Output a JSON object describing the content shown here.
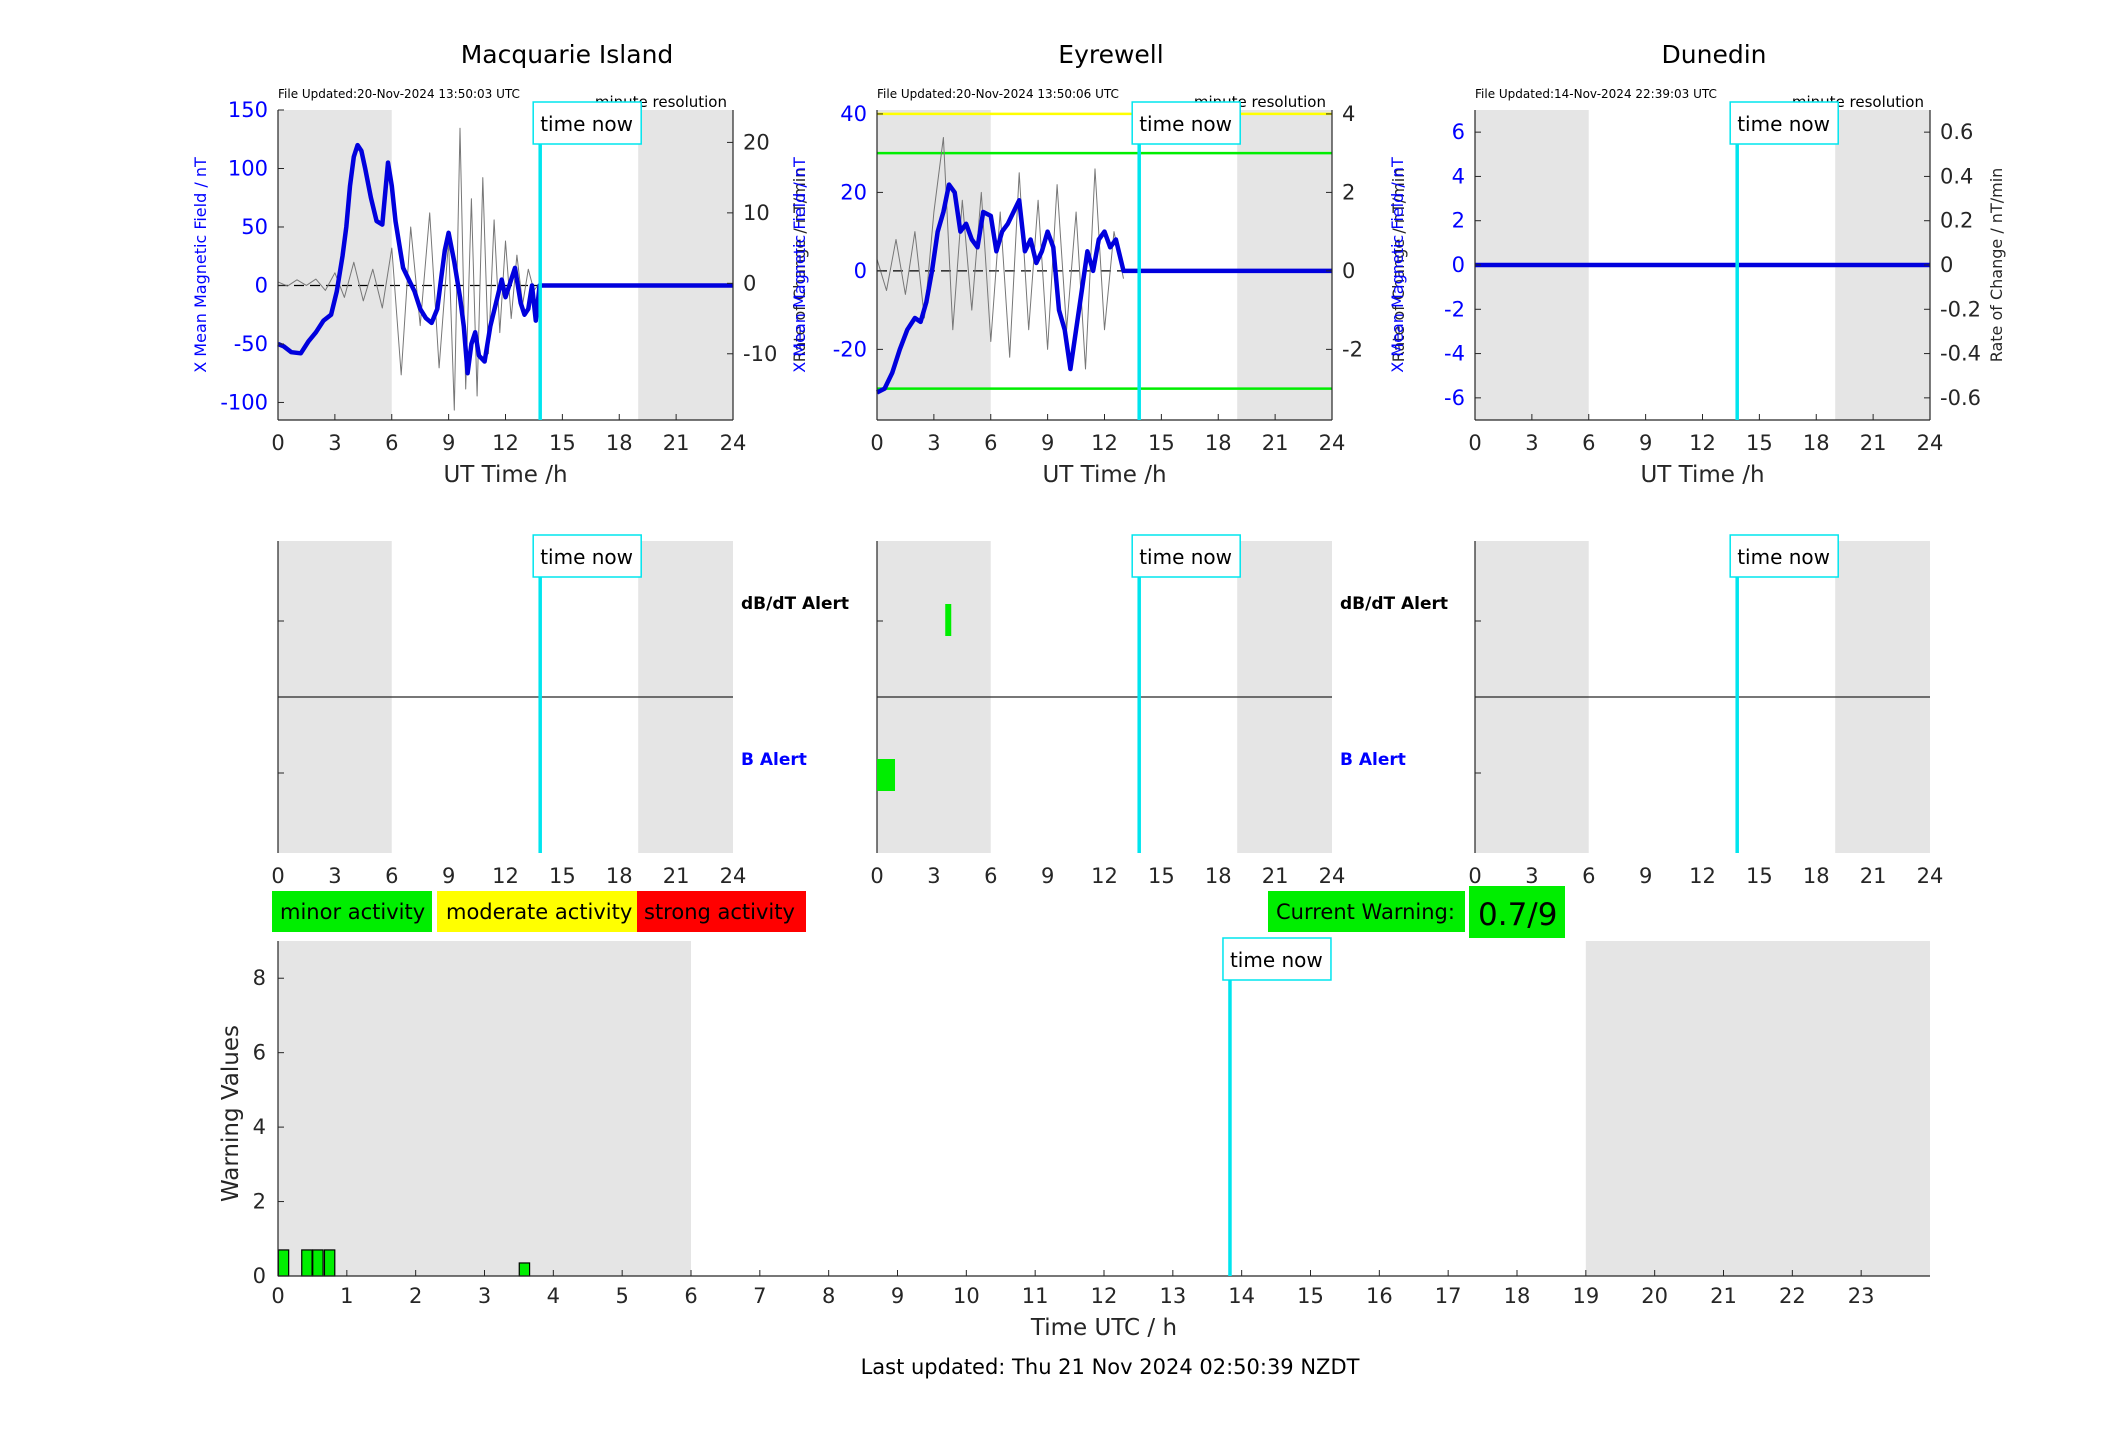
{
  "figure": {
    "footer": "Last updated: Thu 21 Nov 2024 02:50:39 NZDT",
    "time_now_label": "time now",
    "dbdt_alert_label": "dB/dT Alert",
    "b_alert_label": "B Alert",
    "colors": {
      "field_line": "#0000dd",
      "rate_line": "#777777",
      "time_now_line": "#00e5ee",
      "shade": "#e5e5e5",
      "minor": "#00ee00",
      "moderate": "#ffff00",
      "strong": "#ff0000",
      "b_axis": "#0000ff"
    },
    "legend": {
      "minor": "minor activity",
      "moderate": "moderate activity",
      "strong": "strong activity"
    },
    "current_warning": {
      "label": "Current Warning:",
      "value": "0.7/9"
    }
  },
  "chart_data": [
    {
      "type": "line",
      "title": "Macquarie Island",
      "file_updated": "File Updated:20-Nov-2024 13:50:03 UTC",
      "resolution": "minute resolution",
      "xlabel": "UT Time /h",
      "ylabel": "X Mean Magnetic Field / nT",
      "y2label": "Rate of Change / nT/min",
      "xlim": [
        0,
        24
      ],
      "xticks": [
        0,
        3,
        6,
        9,
        12,
        15,
        18,
        21,
        24
      ],
      "ylim": [
        -115,
        150
      ],
      "yticks": [
        -100,
        -50,
        0,
        50,
        100,
        150
      ],
      "y2lim": [
        -19.4,
        24.6
      ],
      "y2ticks": [
        -10,
        0,
        10,
        20
      ],
      "shaded_hours": [
        [
          0,
          6
        ],
        [
          19,
          24
        ]
      ],
      "time_now": 13.83,
      "threshold_lines": [],
      "field_series": {
        "x": [
          0,
          0.3,
          0.7,
          1.2,
          1.6,
          2.0,
          2.4,
          2.8,
          3.1,
          3.4,
          3.6,
          3.8,
          4.0,
          4.2,
          4.4,
          4.6,
          4.9,
          5.2,
          5.5,
          5.8,
          6.0,
          6.2,
          6.4,
          6.6,
          6.9,
          7.2,
          7.5,
          7.8,
          8.1,
          8.4,
          8.6,
          8.8,
          9.0,
          9.3,
          9.6,
          9.8,
          10.0,
          10.2,
          10.4,
          10.6,
          10.9,
          11.2,
          11.5,
          11.8,
          12.0,
          12.3,
          12.5,
          12.8,
          13.0,
          13.2,
          13.4,
          13.6,
          13.8,
          14.0,
          24
        ],
        "y": [
          -50,
          -52,
          -57,
          -58,
          -48,
          -40,
          -30,
          -25,
          -5,
          25,
          50,
          85,
          110,
          120,
          115,
          100,
          75,
          55,
          52,
          105,
          85,
          55,
          35,
          15,
          5,
          -5,
          -20,
          -28,
          -32,
          -20,
          5,
          30,
          45,
          20,
          -10,
          -35,
          -75,
          -50,
          -40,
          -60,
          -65,
          -35,
          -15,
          5,
          -10,
          5,
          15,
          -15,
          -25,
          -20,
          0,
          -30,
          0,
          0,
          0
        ]
      },
      "rate_series": {
        "x": [
          0,
          0.5,
          1,
          1.5,
          2,
          2.5,
          3,
          3.5,
          4,
          4.5,
          5,
          5.5,
          6,
          6.5,
          7,
          7.5,
          8,
          8.5,
          9,
          9.3,
          9.6,
          9.9,
          10.2,
          10.5,
          10.8,
          11.1,
          11.4,
          11.7,
          12,
          12.3,
          12.6,
          12.9,
          13.2,
          13.5,
          13.8
        ],
        "y": [
          0.2,
          -0.4,
          0.5,
          -0.3,
          0.6,
          -1.0,
          1.5,
          -2.0,
          3.0,
          -2.5,
          2.0,
          -3.5,
          5.0,
          -13.0,
          8.0,
          -6.0,
          10.0,
          -12.0,
          6.0,
          -18.0,
          22.0,
          -15.0,
          12.0,
          -16.0,
          15.0,
          -10.0,
          9.0,
          -7.0,
          6.0,
          -5.0,
          4.0,
          -3.0,
          2.0,
          -1.0,
          0.0
        ]
      }
    },
    {
      "type": "line",
      "title": "Eyrewell",
      "file_updated": "File Updated:20-Nov-2024 13:50:06 UTC",
      "resolution": "minute resolution",
      "xlabel": "UT Time /h",
      "ylabel": "X Mean Magnetic Field / nT",
      "y2label": "Rate of Change / nT/min",
      "xlim": [
        0,
        24
      ],
      "xticks": [
        0,
        3,
        6,
        9,
        12,
        15,
        18,
        21,
        24
      ],
      "ylim": [
        -38,
        41
      ],
      "yticks": [
        -20,
        0,
        20,
        40
      ],
      "y2lim": [
        -3.8,
        4.1
      ],
      "y2ticks": [
        -2,
        0,
        2,
        4
      ],
      "shaded_hours": [
        [
          0,
          6
        ],
        [
          19,
          24
        ]
      ],
      "time_now": 13.83,
      "threshold_lines": [
        {
          "value": 40,
          "color": "#ffff00"
        },
        {
          "value": 30,
          "color": "#00ee00"
        },
        {
          "value": -30,
          "color": "#00ee00"
        }
      ],
      "field_series": {
        "x": [
          0,
          0.4,
          0.8,
          1.2,
          1.6,
          2.0,
          2.3,
          2.6,
          2.9,
          3.2,
          3.5,
          3.8,
          4.1,
          4.4,
          4.7,
          5.0,
          5.3,
          5.6,
          6.0,
          6.3,
          6.6,
          6.9,
          7.2,
          7.5,
          7.8,
          8.1,
          8.4,
          8.7,
          9.0,
          9.3,
          9.6,
          9.9,
          10.2,
          10.5,
          10.8,
          11.1,
          11.4,
          11.7,
          12.0,
          12.3,
          12.6,
          13.0,
          13.5,
          24
        ],
        "y": [
          -31,
          -30,
          -26,
          -20,
          -15,
          -12,
          -13,
          -8,
          0,
          10,
          15,
          22,
          20,
          10,
          12,
          8,
          6,
          15,
          14,
          5,
          10,
          12,
          15,
          18,
          5,
          8,
          2,
          5,
          10,
          6,
          -10,
          -15,
          -25,
          -15,
          -5,
          5,
          0,
          8,
          10,
          6,
          8,
          0,
          0,
          0
        ]
      },
      "rate_series": {
        "x": [
          0,
          0.5,
          1,
          1.5,
          2,
          2.5,
          3,
          3.5,
          4,
          4.5,
          5,
          5.5,
          6,
          6.5,
          7,
          7.5,
          8,
          8.5,
          9,
          9.5,
          10,
          10.5,
          11,
          11.5,
          12,
          12.5,
          13
        ],
        "y": [
          0.3,
          -0.5,
          0.8,
          -0.6,
          1.0,
          -1.2,
          1.5,
          3.4,
          -1.5,
          1.8,
          -1.0,
          2.0,
          -1.8,
          1.5,
          -2.2,
          2.5,
          -1.5,
          1.8,
          -2.0,
          2.2,
          -1.5,
          1.5,
          -2.5,
          2.6,
          -1.5,
          1.0,
          -0.2
        ]
      }
    },
    {
      "type": "line",
      "title": "Dunedin",
      "file_updated": "File Updated:14-Nov-2024 22:39:03 UTC",
      "resolution": "minute resolution",
      "xlabel": "UT Time /h",
      "ylabel": "X Mean Magnetic Field / nT",
      "y2label": "Rate of Change / nT/min",
      "xlim": [
        0,
        24
      ],
      "xticks": [
        0,
        3,
        6,
        9,
        12,
        15,
        18,
        21,
        24
      ],
      "ylim": [
        -7,
        7
      ],
      "yticks": [
        -6,
        -4,
        -2,
        0,
        2,
        4,
        6
      ],
      "y2lim": [
        -0.7,
        0.7
      ],
      "y2ticks": [
        -0.6,
        -0.4,
        -0.2,
        0,
        0.2,
        0.4,
        0.6
      ],
      "y2ticklabels": [
        "-0.6",
        "-0.4",
        "-0.2",
        "0",
        "0.2",
        "0.4",
        "0.6"
      ],
      "shaded_hours": [
        [
          0,
          6
        ],
        [
          19,
          24
        ]
      ],
      "time_now": 13.83,
      "threshold_lines": [],
      "field_series": {
        "x": [
          0,
          24
        ],
        "y": [
          0,
          0
        ]
      },
      "rate_series": {
        "x": [],
        "y": []
      }
    },
    {
      "type": "bar",
      "name": "alerts",
      "xlim": [
        0,
        24
      ],
      "xticks": [
        0,
        3,
        6,
        9,
        12,
        15,
        18,
        21,
        24
      ],
      "shaded_hours": [
        [
          0,
          6
        ],
        [
          19,
          24
        ]
      ],
      "time_now": 13.83,
      "panels": [
        {
          "station": "Macquarie Island",
          "dbdt_alerts": [],
          "b_alerts": []
        },
        {
          "station": "Eyrewell",
          "dbdt_alerts": [
            {
              "start": 3.6,
              "end": 3.8
            }
          ],
          "b_alerts": [
            {
              "start": 0,
              "end": 0.95
            }
          ]
        },
        {
          "station": "Dunedin",
          "dbdt_alerts": [],
          "b_alerts": []
        }
      ]
    },
    {
      "type": "bar",
      "name": "warning",
      "xlabel": "Time UTC / h",
      "ylabel": "Warning Values",
      "xlim": [
        0,
        24
      ],
      "xticks": [
        0,
        1,
        2,
        3,
        4,
        5,
        6,
        7,
        8,
        9,
        10,
        11,
        12,
        13,
        14,
        15,
        16,
        17,
        18,
        19,
        20,
        21,
        22,
        23
      ],
      "ylim": [
        0,
        9
      ],
      "yticks": [
        0,
        2,
        4,
        6,
        8
      ],
      "shaded_hours": [
        [
          0,
          6
        ],
        [
          19,
          24
        ]
      ],
      "time_now": 13.83,
      "bar_width": 0.15,
      "bars": [
        {
          "x": 0.08,
          "value": 0.7
        },
        {
          "x": 0.42,
          "value": 0.7
        },
        {
          "x": 0.58,
          "value": 0.7
        },
        {
          "x": 0.75,
          "value": 0.7
        },
        {
          "x": 3.58,
          "value": 0.35
        }
      ]
    }
  ]
}
